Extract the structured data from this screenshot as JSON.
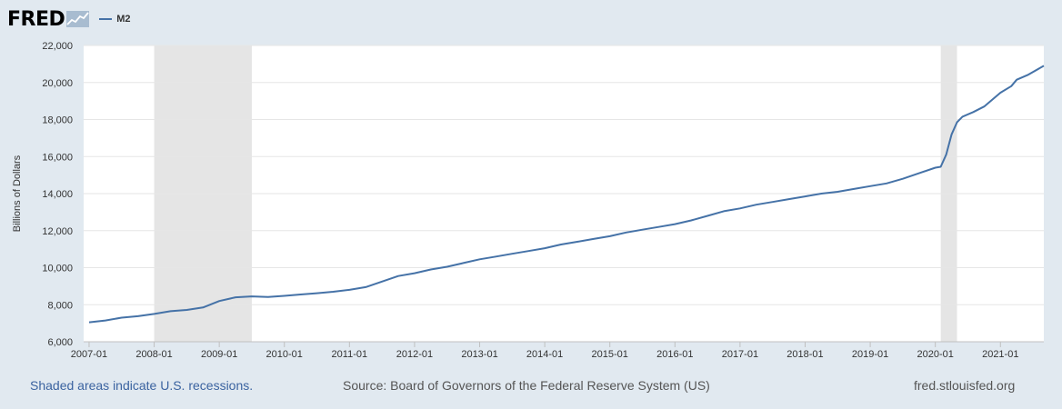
{
  "header": {
    "logo_text": "FRED",
    "legend_series": "M2",
    "series_color": "#4572a7"
  },
  "footer": {
    "note": "Shaded areas indicate U.S. recessions.",
    "source": "Source: Board of Governors of the Federal Reserve System (US)",
    "site": "fred.stlouisfed.org"
  },
  "chart_data": {
    "type": "line",
    "title": "",
    "xlabel": "",
    "ylabel": "Billions of Dollars",
    "xlim": [
      "2006-12-01",
      "2021-09-01"
    ],
    "ylim": [
      6000,
      22000
    ],
    "y_ticks": [
      6000,
      8000,
      10000,
      12000,
      14000,
      16000,
      18000,
      20000,
      22000
    ],
    "y_tick_labels": [
      "6,000",
      "8,000",
      "10,000",
      "12,000",
      "14,000",
      "16,000",
      "18,000",
      "20,000",
      "22,000"
    ],
    "x_ticks": [
      "2007-01",
      "2008-01",
      "2009-01",
      "2010-01",
      "2011-01",
      "2012-01",
      "2013-01",
      "2014-01",
      "2015-01",
      "2016-01",
      "2017-01",
      "2018-01",
      "2019-01",
      "2020-01",
      "2021-01"
    ],
    "grid": true,
    "recessions": [
      {
        "start": "2008-01",
        "end": "2009-06"
      },
      {
        "start": "2020-02",
        "end": "2020-04"
      }
    ],
    "series": [
      {
        "name": "M2",
        "color": "#4572a7",
        "points": [
          [
            "2007-01",
            7050
          ],
          [
            "2007-04",
            7150
          ],
          [
            "2007-07",
            7300
          ],
          [
            "2007-10",
            7380
          ],
          [
            "2008-01",
            7500
          ],
          [
            "2008-04",
            7650
          ],
          [
            "2008-07",
            7720
          ],
          [
            "2008-10",
            7850
          ],
          [
            "2009-01",
            8200
          ],
          [
            "2009-04",
            8400
          ],
          [
            "2009-07",
            8450
          ],
          [
            "2009-10",
            8420
          ],
          [
            "2010-01",
            8480
          ],
          [
            "2010-04",
            8550
          ],
          [
            "2010-07",
            8620
          ],
          [
            "2010-10",
            8700
          ],
          [
            "2011-01",
            8800
          ],
          [
            "2011-04",
            8950
          ],
          [
            "2011-07",
            9250
          ],
          [
            "2011-10",
            9550
          ],
          [
            "2012-01",
            9700
          ],
          [
            "2012-04",
            9900
          ],
          [
            "2012-07",
            10050
          ],
          [
            "2012-10",
            10250
          ],
          [
            "2013-01",
            10450
          ],
          [
            "2013-04",
            10600
          ],
          [
            "2013-07",
            10750
          ],
          [
            "2013-10",
            10900
          ],
          [
            "2014-01",
            11050
          ],
          [
            "2014-04",
            11250
          ],
          [
            "2014-07",
            11400
          ],
          [
            "2014-10",
            11550
          ],
          [
            "2015-01",
            11700
          ],
          [
            "2015-04",
            11900
          ],
          [
            "2015-07",
            12050
          ],
          [
            "2015-10",
            12200
          ],
          [
            "2016-01",
            12350
          ],
          [
            "2016-04",
            12550
          ],
          [
            "2016-07",
            12800
          ],
          [
            "2016-10",
            13050
          ],
          [
            "2017-01",
            13200
          ],
          [
            "2017-04",
            13400
          ],
          [
            "2017-07",
            13550
          ],
          [
            "2017-10",
            13700
          ],
          [
            "2018-01",
            13850
          ],
          [
            "2018-04",
            14000
          ],
          [
            "2018-07",
            14100
          ],
          [
            "2018-10",
            14250
          ],
          [
            "2019-01",
            14400
          ],
          [
            "2019-04",
            14550
          ],
          [
            "2019-07",
            14800
          ],
          [
            "2019-10",
            15100
          ],
          [
            "2020-01",
            15400
          ],
          [
            "2020-02",
            15450
          ],
          [
            "2020-03",
            16100
          ],
          [
            "2020-04",
            17200
          ],
          [
            "2020-05",
            17850
          ],
          [
            "2020-06",
            18150
          ],
          [
            "2020-08",
            18400
          ],
          [
            "2020-10",
            18700
          ],
          [
            "2021-01",
            19450
          ],
          [
            "2021-03",
            19800
          ],
          [
            "2021-04",
            20150
          ],
          [
            "2021-06",
            20400
          ],
          [
            "2021-09",
            20900
          ]
        ]
      }
    ]
  }
}
